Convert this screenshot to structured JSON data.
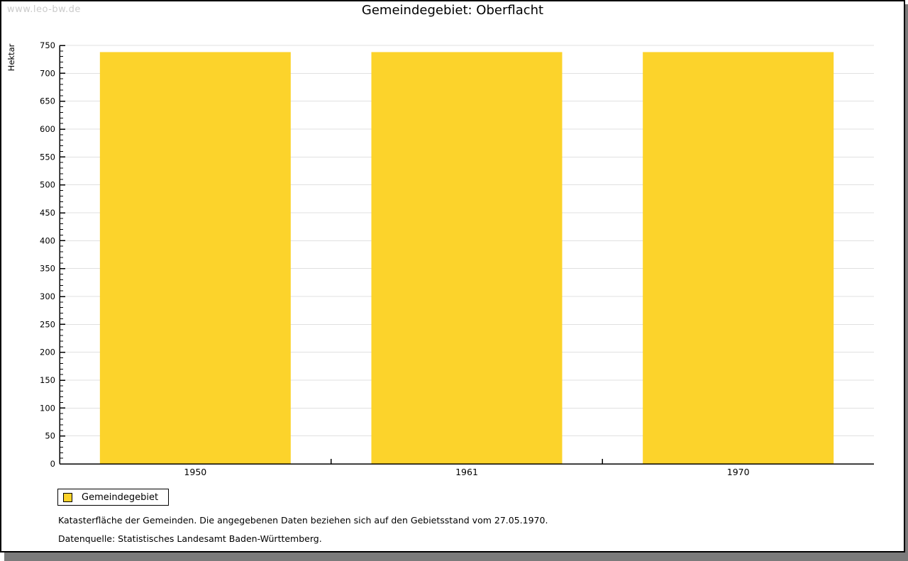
{
  "window": {
    "watermark": "www.leo-bw.de"
  },
  "chart_data": {
    "type": "bar",
    "title": "Gemeindegebiet: Oberflacht",
    "categories": [
      "1950",
      "1961",
      "1970"
    ],
    "series": [
      {
        "name": "Gemeindegebiet",
        "values": [
          738,
          738,
          738
        ]
      }
    ],
    "xlabel": "",
    "ylabel": "Hektar",
    "ylim": [
      0,
      750
    ],
    "ytick_step": 50,
    "yminor_step": 10,
    "grid": true,
    "legend_position": "bottom-left",
    "bar_color": "#fcd32b",
    "gridline_color": "#e0e0e0",
    "axis_color": "#000000",
    "tick_label_color": "#000000"
  },
  "legend": {
    "items": [
      {
        "label": "Gemeindegebiet",
        "color": "#fcd32b"
      }
    ]
  },
  "footnotes": {
    "line1": "Katasterfläche der Gemeinden. Die angegebenen Daten beziehen sich auf den Gebietsstand vom 27.05.1970.",
    "line2": "Datenquelle: Statistisches Landesamt Baden-Württemberg."
  },
  "colors": {
    "watermark": "#cbcbcb",
    "window_shadow": "#7b7b7b",
    "background": "#ffffff"
  }
}
